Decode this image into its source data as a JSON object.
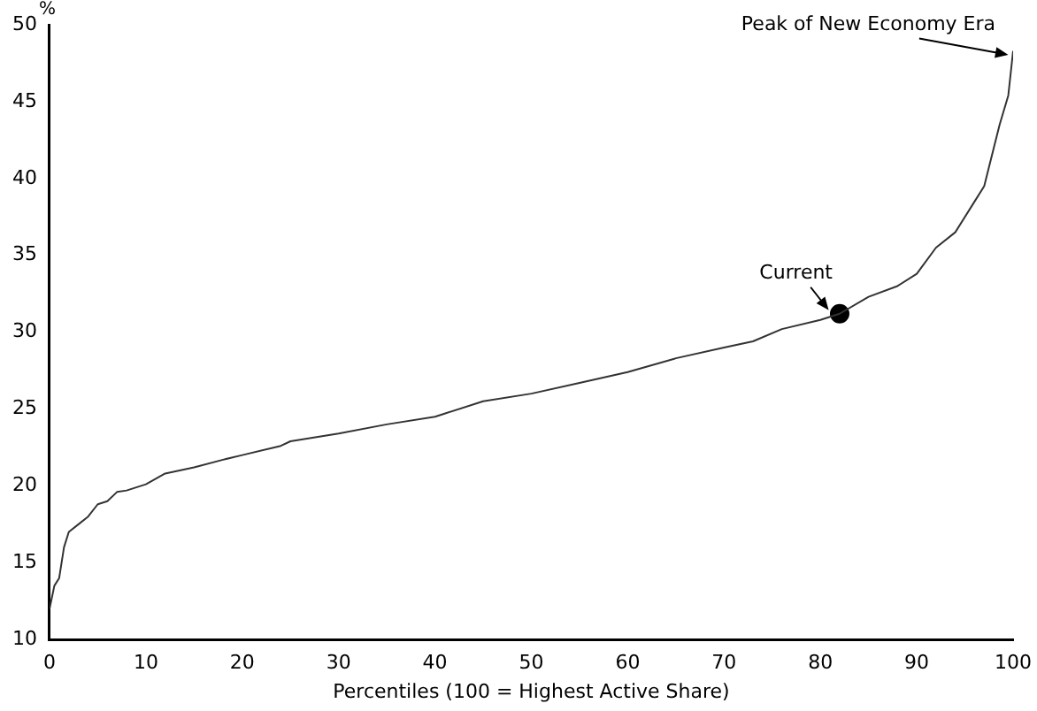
{
  "chart_data": {
    "type": "line",
    "xlabel": "Percentiles (100 = Highest Active Share)",
    "ylabel": "%",
    "xlim": [
      0,
      100
    ],
    "xticks": [
      0,
      10,
      20,
      30,
      40,
      50,
      60,
      70,
      80,
      90,
      100
    ],
    "ylim": [
      10,
      50
    ],
    "yticks": [
      10,
      15,
      20,
      25,
      30,
      35,
      40,
      45,
      50
    ],
    "grid": false,
    "legend": false,
    "series": [
      {
        "color": "#333333",
        "marker": "none",
        "x": [
          0,
          0.5,
          1,
          1.5,
          2,
          3,
          4,
          5,
          6,
          7,
          8,
          10,
          12,
          15,
          18,
          20,
          24,
          25,
          30,
          35,
          40,
          41,
          45,
          50,
          55,
          60,
          65,
          70,
          73,
          76,
          80,
          82,
          85,
          88,
          90,
          92,
          94,
          96,
          97,
          98,
          98.6,
          99.5,
          100
        ],
        "values": [
          12,
          13.5,
          14,
          16,
          17,
          17.5,
          18,
          18.8,
          19,
          19.6,
          19.7,
          20.1,
          20.8,
          21.2,
          21.7,
          22,
          22.6,
          22.9,
          23.4,
          24,
          24.5,
          24.7,
          25.5,
          26,
          26.7,
          27.4,
          28.3,
          29,
          29.4,
          30.2,
          30.8,
          31.2,
          32.3,
          33,
          33.8,
          35.5,
          36.5,
          38.5,
          39.5,
          42,
          43.5,
          45.4,
          48.3
        ]
      },
      {
        "type": "scatter",
        "color": "#000000",
        "marker": "circle",
        "x": [
          82
        ],
        "values": [
          31.2
        ]
      }
    ],
    "annotations": [
      {
        "text": "Current",
        "x": 82,
        "y": 31.2
      },
      {
        "text": "Peak of New Economy Era",
        "x": 100,
        "y": 48.3
      }
    ]
  }
}
